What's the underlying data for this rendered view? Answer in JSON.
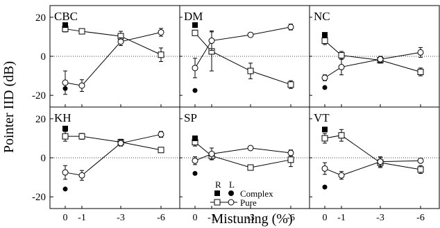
{
  "chart_data": {
    "type": "scatter",
    "ylabel": "Pointer IID (dB)",
    "xlabel": "Mistuning (%)",
    "x_ticks": [
      "0",
      "-1",
      "-3",
      "-6"
    ],
    "x_tick_values": [
      0,
      -1,
      -3,
      -6
    ],
    "y_ticks": [
      "20",
      "0",
      "-20"
    ],
    "y_tick_values": [
      20,
      0,
      -20
    ],
    "ylim": [
      -26,
      26
    ],
    "xlim": [
      0.5,
      -6.7
    ],
    "legend": {
      "header_r": "R",
      "header_l": "L",
      "complex": "Complex",
      "pure": "Pure",
      "placement": "bottom of SP panel"
    },
    "panels": [
      {
        "label": "CBC",
        "complex_R": {
          "x": 0,
          "y": 16
        },
        "complex_L": {
          "x": 0,
          "y": -16.5
        },
        "pure_R": [
          {
            "x": 0,
            "y": 14,
            "err": 1.5
          },
          {
            "x": -1,
            "y": 12.8,
            "err": 1.2
          },
          {
            "x": -3,
            "y": 10.3,
            "err": 2.5
          },
          {
            "x": -6,
            "y": 0.8,
            "err": 3.5
          }
        ],
        "pure_L": [
          {
            "x": 0,
            "y": -13.5,
            "err": 6
          },
          {
            "x": -1,
            "y": -15,
            "err": 3
          },
          {
            "x": -3,
            "y": 7.5,
            "err": 2
          },
          {
            "x": -6,
            "y": 12.3,
            "err": 2
          }
        ]
      },
      {
        "label": "DM",
        "complex_R": {
          "x": 0,
          "y": 16
        },
        "complex_L": {
          "x": 0,
          "y": -17.5
        },
        "pure_R": [
          {
            "x": 0,
            "y": 12,
            "err": 1
          },
          {
            "x": -1,
            "y": 2.5,
            "err": 10
          },
          {
            "x": -3,
            "y": -7.5,
            "err": 4
          },
          {
            "x": -6,
            "y": -14.5,
            "err": 2
          }
        ],
        "pure_L": [
          {
            "x": 0,
            "y": -6,
            "err": 5
          },
          {
            "x": -1,
            "y": 8,
            "err": 5
          },
          {
            "x": -3,
            "y": 11,
            "err": 1
          },
          {
            "x": -6,
            "y": 15,
            "err": 1.5
          }
        ]
      },
      {
        "label": "NC",
        "complex_R": {
          "x": 0,
          "y": 11
        },
        "complex_L": {
          "x": 0,
          "y": -16
        },
        "pure_R": [
          {
            "x": 0,
            "y": 8,
            "err": 2
          },
          {
            "x": -1,
            "y": 0.5,
            "err": 2
          },
          {
            "x": -3,
            "y": -2,
            "err": 1.5
          },
          {
            "x": -6,
            "y": -8,
            "err": 2
          }
        ],
        "pure_L": [
          {
            "x": 0,
            "y": -11,
            "err": 1.5
          },
          {
            "x": -1,
            "y": -5.5,
            "err": 4
          },
          {
            "x": -3,
            "y": -1.5,
            "err": 1.5
          },
          {
            "x": -6,
            "y": 2,
            "err": 2.5
          }
        ]
      },
      {
        "label": "KH",
        "complex_R": {
          "x": 0,
          "y": 15
        },
        "complex_L": {
          "x": 0,
          "y": -16
        },
        "pure_R": [
          {
            "x": 0,
            "y": 11,
            "err": 2.5
          },
          {
            "x": -1,
            "y": 11,
            "err": 1.5
          },
          {
            "x": -3,
            "y": 8,
            "err": 1.5
          },
          {
            "x": -6,
            "y": 4,
            "err": 1
          }
        ],
        "pure_L": [
          {
            "x": 0,
            "y": -7.5,
            "err": 3.5
          },
          {
            "x": -1,
            "y": -9,
            "err": 2.5
          },
          {
            "x": -3,
            "y": 7.5,
            "err": 1.5
          },
          {
            "x": -6,
            "y": 12,
            "err": 1.5
          }
        ]
      },
      {
        "label": "SP",
        "complex_R": {
          "x": 0,
          "y": 10
        },
        "complex_L": {
          "x": 0,
          "y": -8
        },
        "pure_R": [
          {
            "x": 0,
            "y": 8,
            "err": 2
          },
          {
            "x": -1,
            "y": 1,
            "err": 2
          },
          {
            "x": -3,
            "y": -5,
            "err": 1
          },
          {
            "x": -6,
            "y": -1,
            "err": 3.5
          }
        ],
        "pure_L": [
          {
            "x": 0,
            "y": -1.5,
            "err": 2
          },
          {
            "x": -1,
            "y": 2,
            "err": 3
          },
          {
            "x": -3,
            "y": 5,
            "err": 1
          },
          {
            "x": -6,
            "y": 2.5,
            "err": 1.5
          }
        ]
      },
      {
        "label": "VT",
        "complex_R": {
          "x": 0,
          "y": 14.5
        },
        "complex_L": {
          "x": 0,
          "y": -15
        },
        "pure_R": [
          {
            "x": 0,
            "y": 10,
            "err": 2.5
          },
          {
            "x": -1,
            "y": 11.5,
            "err": 3
          },
          {
            "x": -3,
            "y": -2.5,
            "err": 2.5
          },
          {
            "x": -6,
            "y": -6,
            "err": 2
          }
        ],
        "pure_L": [
          {
            "x": 0,
            "y": -5.5,
            "err": 3
          },
          {
            "x": -1,
            "y": -9,
            "err": 2
          },
          {
            "x": -3,
            "y": -2,
            "err": 2.5
          },
          {
            "x": -6,
            "y": -1.5,
            "err": 1
          }
        ]
      }
    ]
  }
}
